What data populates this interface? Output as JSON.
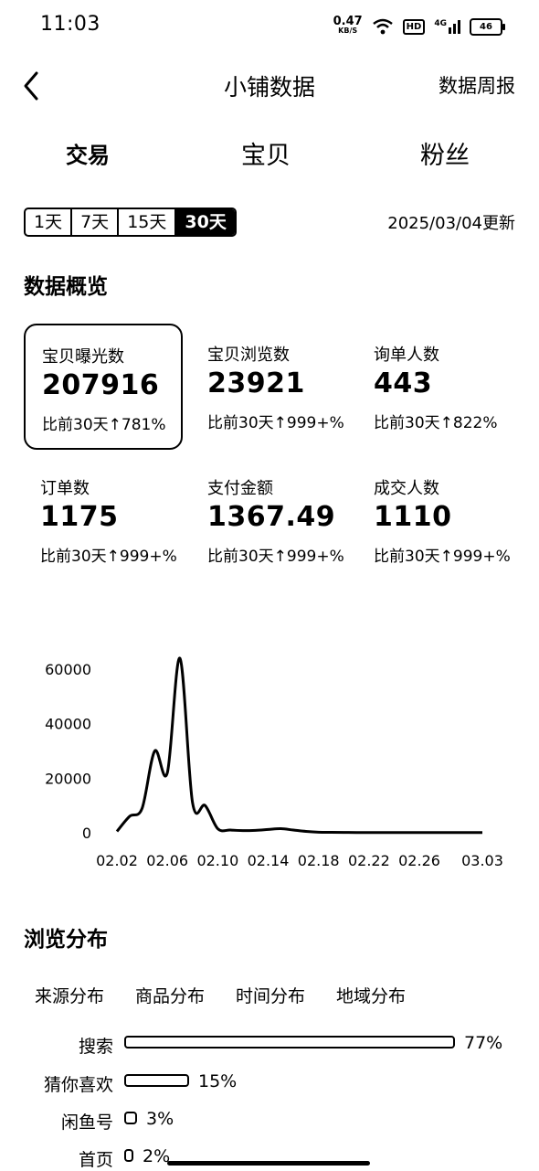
{
  "status_bar": {
    "time": "11:03",
    "net_speed": "0.47",
    "net_unit": "KB/S",
    "hd": "HD",
    "signal": "4G",
    "battery": "46"
  },
  "nav": {
    "title": "小铺数据",
    "weekly_report": "数据周报"
  },
  "tabs": [
    "交易",
    "宝贝",
    "粉丝"
  ],
  "range": {
    "options": [
      "1天",
      "7天",
      "15天",
      "30天"
    ],
    "selected": "30天",
    "updated": "2025/03/04更新"
  },
  "overview": {
    "title": "数据概览",
    "metrics": [
      {
        "label": "宝贝曝光数",
        "value": "207916",
        "change": "比前30天↑781%"
      },
      {
        "label": "宝贝浏览数",
        "value": "23921",
        "change": "比前30天↑999+%"
      },
      {
        "label": "询单人数",
        "value": "443",
        "change": "比前30天↑822%"
      },
      {
        "label": "订单数",
        "value": "1175",
        "change": "比前30天↑999+%"
      },
      {
        "label": "支付金额",
        "value": "1367.49",
        "change": "比前30天↑999+%"
      },
      {
        "label": "成交人数",
        "value": "1110",
        "change": "比前30天↑999+%"
      }
    ]
  },
  "chart_data": {
    "type": "line",
    "y_ticks": [
      "60000",
      "40000",
      "20000",
      "0"
    ],
    "x_ticks": [
      "02.02",
      "02.06",
      "02.10",
      "02.14",
      "02.18",
      "02.22",
      "02.26",
      "03.03"
    ],
    "ylim": [
      0,
      60000
    ],
    "x": [
      "02.02",
      "02.03",
      "02.04",
      "02.05",
      "02.06",
      "02.07",
      "02.08",
      "02.09",
      "02.10",
      "02.11",
      "02.12",
      "02.13",
      "02.14",
      "02.15",
      "02.16",
      "02.17",
      "02.18",
      "02.19",
      "02.20",
      "02.21",
      "02.22",
      "02.23",
      "02.24",
      "02.25",
      "02.26",
      "02.27",
      "02.28",
      "03.01",
      "03.02",
      "03.03"
    ],
    "values": [
      500,
      6000,
      9000,
      30000,
      22000,
      64000,
      11000,
      10000,
      1500,
      1000,
      800,
      900,
      1200,
      1500,
      1000,
      500,
      200,
      150,
      120,
      100,
      100,
      100,
      100,
      100,
      100,
      100,
      100,
      100,
      100,
      100
    ]
  },
  "browse": {
    "title": "浏览分布",
    "tabs": [
      "来源分布",
      "商品分布",
      "时间分布",
      "地域分布"
    ],
    "bars": [
      {
        "label": "搜索",
        "value": 77,
        "text": "77%"
      },
      {
        "label": "猜你喜欢",
        "value": 15,
        "text": "15%"
      },
      {
        "label": "闲鱼号",
        "value": 3,
        "text": "3%"
      },
      {
        "label": "首页",
        "value": 2,
        "text": "2%"
      }
    ]
  }
}
